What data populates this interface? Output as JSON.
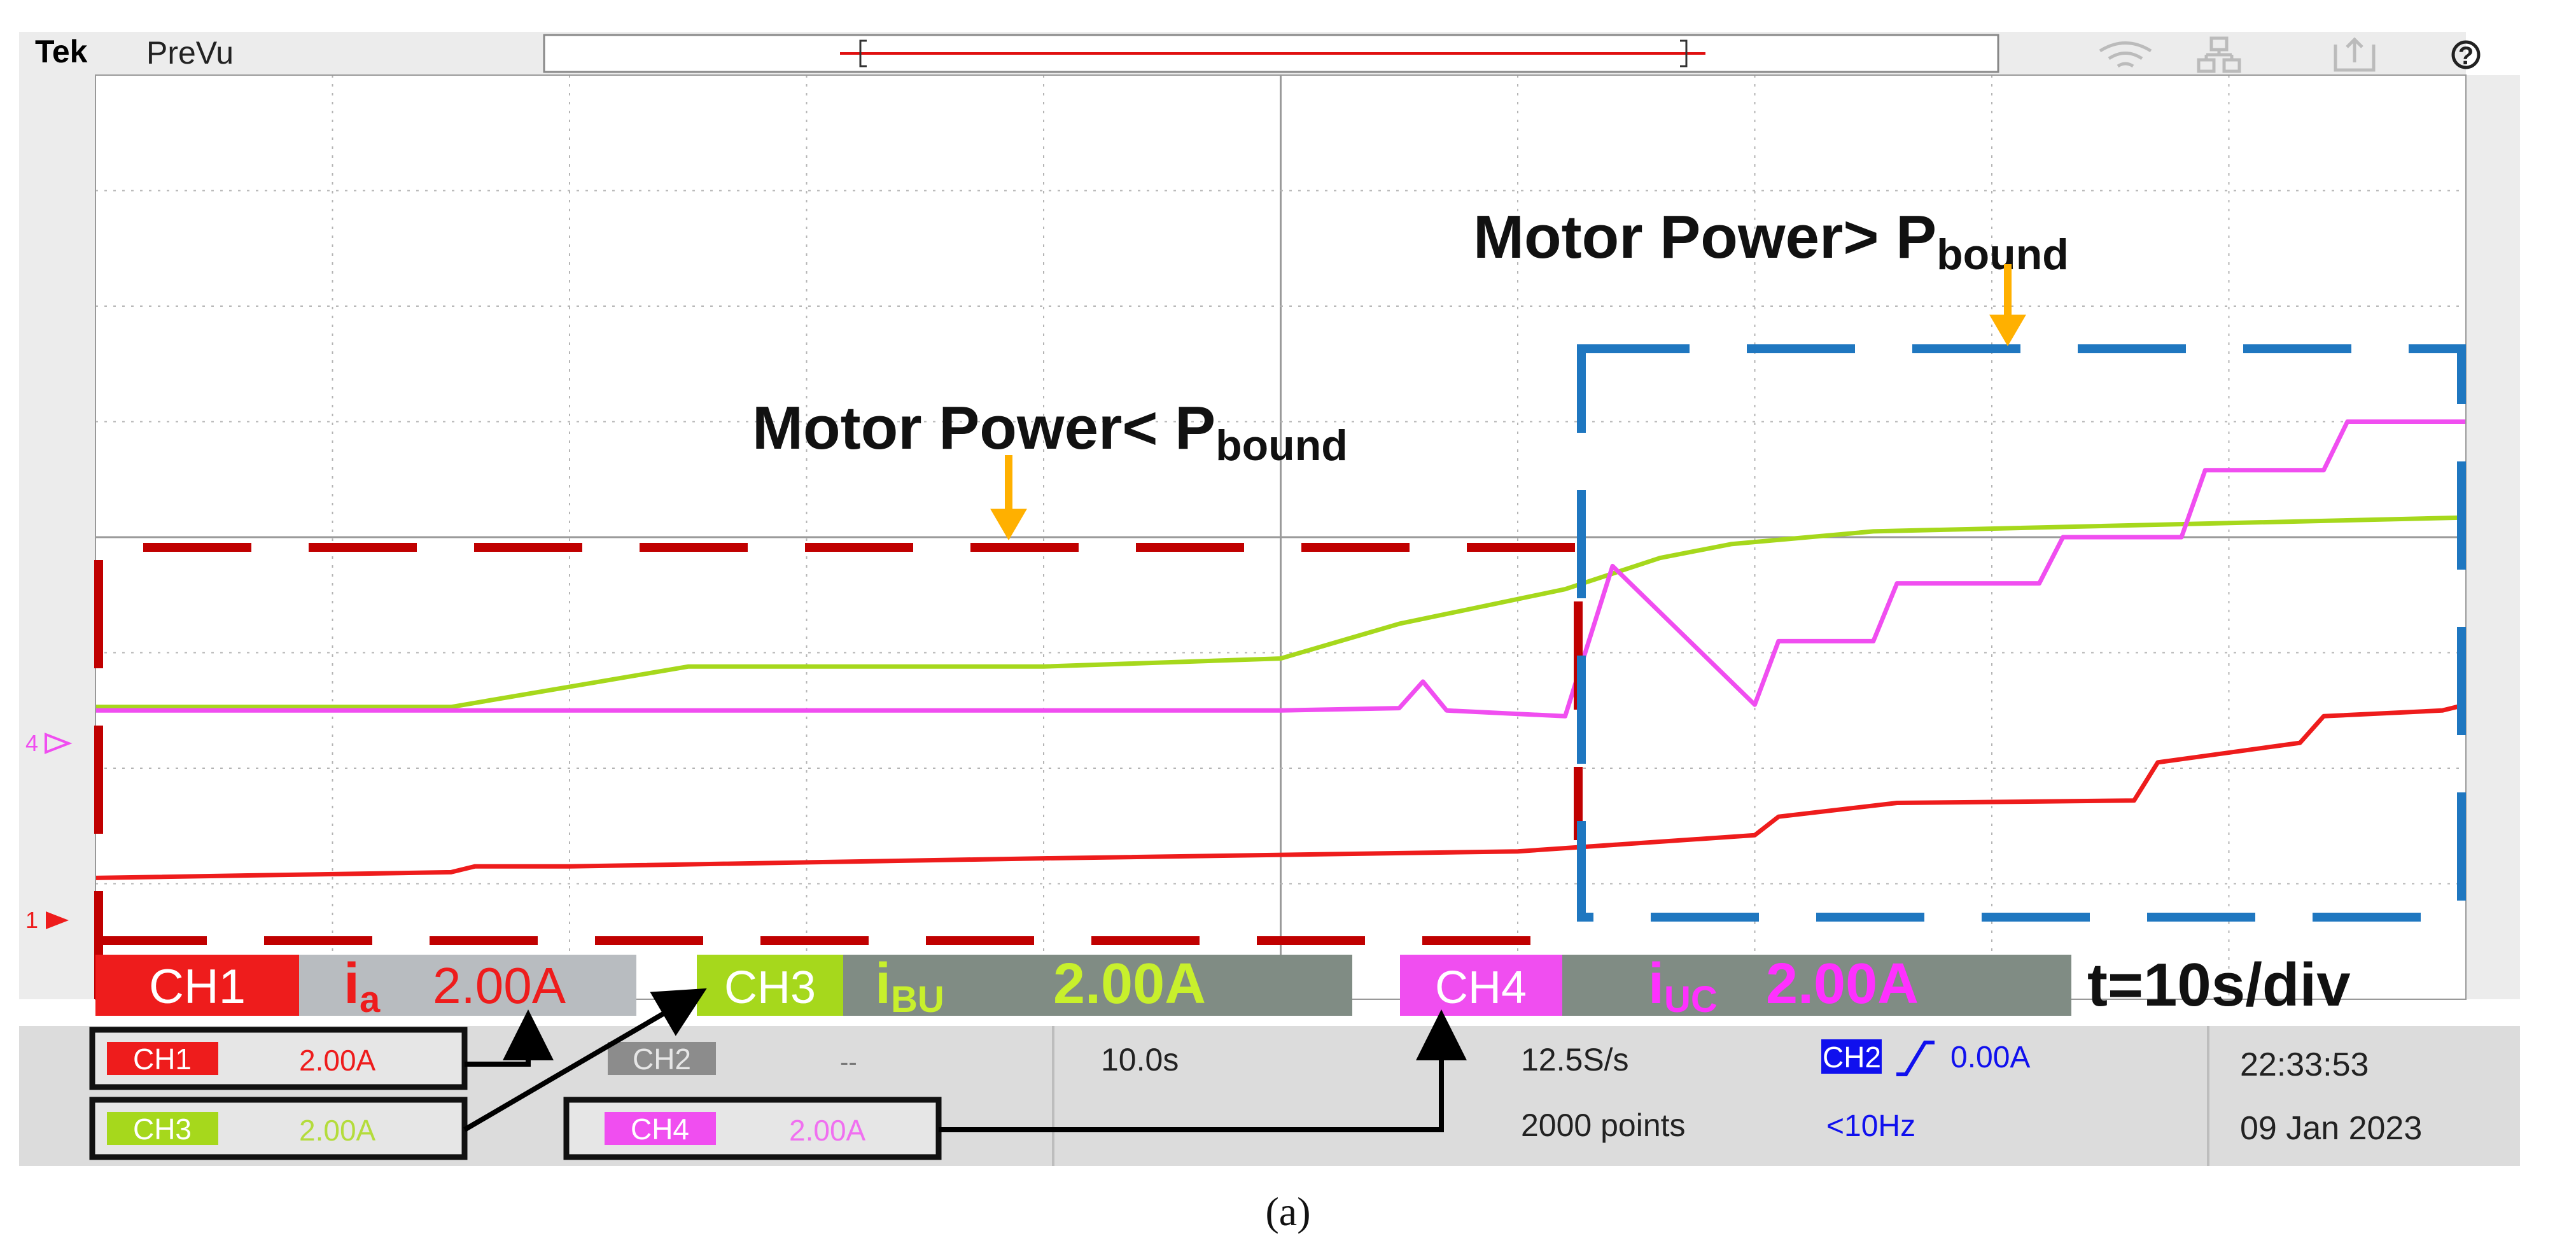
{
  "header": {
    "brand": "Tek",
    "mode": "PreVu",
    "icons": [
      "wifi-icon",
      "network-icon",
      "export-icon",
      "help-icon"
    ],
    "help_glyph": "?"
  },
  "annotations": {
    "low_prefix": "Motor Power< P",
    "low_sub": "bound",
    "high_prefix": "Motor Power> P",
    "high_sub": "bound"
  },
  "labels": {
    "ch1_tag": "CH1",
    "ch1_sym": "i",
    "ch1_sub": "a",
    "ch1_scale": "2.00A",
    "ch3_tag": "CH3",
    "ch3_sym": "i",
    "ch3_sub": "BU",
    "ch3_scale": "2.00A",
    "ch4_tag": "CH4",
    "ch4_sym": "i",
    "ch4_sub": "UC",
    "ch4_scale": "2.00A",
    "timebase_note": "t=10s/div"
  },
  "status": {
    "ch1": {
      "tag": "CH1",
      "value": "2.00A"
    },
    "ch2": {
      "tag": "CH2",
      "value": "--"
    },
    "ch3": {
      "tag": "CH3",
      "value": "2.00A"
    },
    "ch4": {
      "tag": "CH4",
      "value": "2.00A"
    },
    "timebase": "10.0s",
    "sample_rate": "12.5S/s",
    "record_length": "2000 points",
    "trigger_source": "CH2",
    "trigger_level": "0.00A",
    "filter": "<10Hz",
    "time": "22:33:53",
    "date": "09 Jan 2023"
  },
  "markers": {
    "ch4": "4",
    "ch1": "1"
  },
  "caption": "(a)",
  "colors": {
    "ch1": "#ee1c1c",
    "ch3": "#a6d81c",
    "ch4": "#f04ef0",
    "box_low": "#c00000",
    "box_high": "#1f77c0",
    "arrow": "#ffb000",
    "grid": "#b4b4b4",
    "label_bg": "#808c84"
  },
  "chart_data": {
    "type": "line",
    "x_divisions": 10,
    "y_divisions": 8,
    "xlim": [
      0,
      100
    ],
    "ylim": [
      -4,
      4
    ],
    "x_unit": "s",
    "y_unit": "div",
    "grid": true,
    "series": [
      {
        "channel": "CH1",
        "color": "#ee1c1c",
        "x": [
          0,
          15,
          16,
          20,
          40,
          60,
          70,
          71,
          76,
          86,
          87,
          93,
          94,
          99,
          100
        ],
        "y": [
          -2.95,
          -2.9,
          -2.85,
          -2.85,
          -2.78,
          -2.72,
          -2.58,
          -2.42,
          -2.3,
          -2.28,
          -1.95,
          -1.78,
          -1.55,
          -1.5,
          -1.45
        ]
      },
      {
        "channel": "CH3",
        "color": "#a6d81c",
        "x": [
          0,
          15,
          25,
          40,
          50,
          55,
          62,
          66,
          69,
          75,
          100
        ],
        "y": [
          -1.47,
          -1.47,
          -1.12,
          -1.12,
          -1.05,
          -0.75,
          -0.45,
          -0.18,
          -0.06,
          0.05,
          0.17
        ]
      },
      {
        "channel": "CH4",
        "color": "#f04ef0",
        "x": [
          0,
          15,
          50,
          55,
          56,
          57,
          62,
          64,
          70,
          71,
          75,
          76,
          82,
          83,
          88,
          89,
          94,
          95,
          100
        ],
        "y": [
          -1.5,
          -1.5,
          -1.5,
          -1.48,
          -1.25,
          -1.5,
          -1.55,
          -0.25,
          -1.45,
          -0.9,
          -0.9,
          -0.4,
          -0.4,
          0.0,
          0.0,
          0.58,
          0.58,
          1.0,
          1.0
        ]
      }
    ]
  }
}
